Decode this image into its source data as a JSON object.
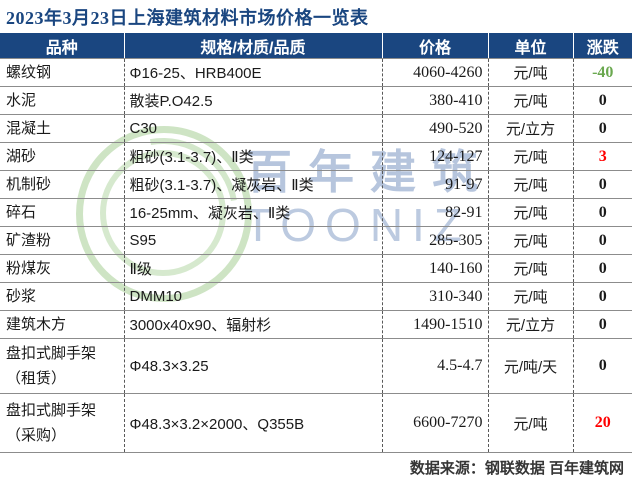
{
  "title": "2023年3月23日上海建筑材料市场价格一览表",
  "colors": {
    "header_bg": "#1a4680",
    "title_text": "#1a4680",
    "change_up": "#ff0000",
    "change_down": "#6aa84f",
    "change_flat": "#1a1a1a"
  },
  "watermark": {
    "logo": "green-ring-logo",
    "text_cn": "百年建筑",
    "text_en": "TOONIZ"
  },
  "table": {
    "headers": [
      "品种",
      "规格/材质/品质",
      "价格",
      "单位",
      "涨跌"
    ],
    "rows": [
      {
        "name": "螺纹钢",
        "name2": "",
        "spec": "Φ16-25、HRB400E",
        "price": "4060-4260",
        "unit": "元/吨",
        "change": "-40",
        "trend": "down"
      },
      {
        "name": "水泥",
        "name2": "",
        "spec": "散装P.O42.5",
        "price": "380-410",
        "unit": "元/吨",
        "change": "0",
        "trend": "flat"
      },
      {
        "name": "混凝土",
        "name2": "",
        "spec": "C30",
        "price": "490-520",
        "unit": "元/立方",
        "change": "0",
        "trend": "flat"
      },
      {
        "name": "湖砂",
        "name2": "",
        "spec": "粗砂(3.1-3.7)、Ⅱ类",
        "price": "124-127",
        "unit": "元/吨",
        "change": "3",
        "trend": "up"
      },
      {
        "name": "机制砂",
        "name2": "",
        "spec": "粗砂(3.1-3.7)、凝灰岩、Ⅱ类",
        "price": "91-97",
        "unit": "元/吨",
        "change": "0",
        "trend": "flat"
      },
      {
        "name": "碎石",
        "name2": "",
        "spec": "16-25mm、凝灰岩、Ⅱ类",
        "price": "82-91",
        "unit": "元/吨",
        "change": "0",
        "trend": "flat"
      },
      {
        "name": "矿渣粉",
        "name2": "",
        "spec": "S95",
        "price": "285-305",
        "unit": "元/吨",
        "change": "0",
        "trend": "flat"
      },
      {
        "name": "粉煤灰",
        "name2": "",
        "spec": "Ⅱ级",
        "price": "140-160",
        "unit": "元/吨",
        "change": "0",
        "trend": "flat"
      },
      {
        "name": "砂浆",
        "name2": "",
        "spec": "DMM10",
        "price": "310-340",
        "unit": "元/吨",
        "change": "0",
        "trend": "flat"
      },
      {
        "name": "建筑木方",
        "name2": "",
        "spec": "3000x40x90、辐射杉",
        "price": "1490-1510",
        "unit": "元/立方",
        "change": "0",
        "trend": "flat"
      },
      {
        "name": "盘扣式脚手架",
        "name2": "（租赁）",
        "spec": "Φ48.3×3.25",
        "price": "4.5-4.7",
        "unit": "元/吨/天",
        "change": "0",
        "trend": "flat"
      },
      {
        "name": "盘扣式脚手架",
        "name2": "（采购）",
        "spec": "Φ48.3×3.2×2000、Q355B",
        "price": "6600-7270",
        "unit": "元/吨",
        "change": "20",
        "trend": "up"
      }
    ]
  },
  "footer": {
    "text": "数据来源：钢联数据  百年建筑网"
  }
}
